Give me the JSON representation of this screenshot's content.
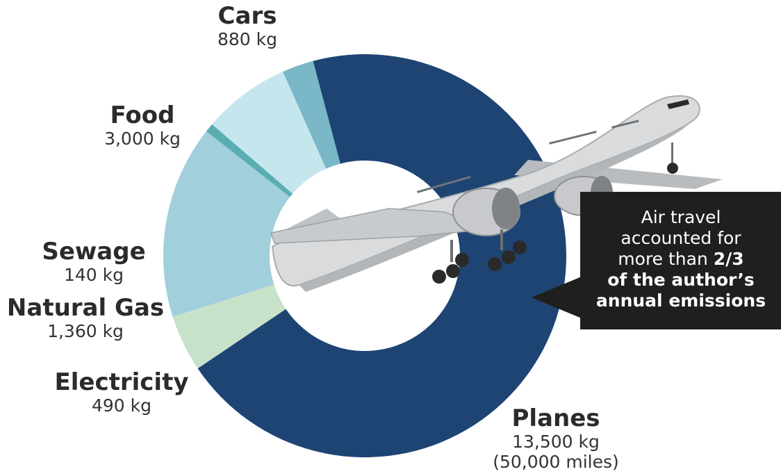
{
  "chart_data": {
    "type": "pie",
    "categories": [
      "Planes",
      "Cars",
      "Food",
      "Sewage",
      "Natural Gas",
      "Electricity"
    ],
    "values": [
      13500,
      880,
      3000,
      140,
      1360,
      490
    ],
    "value_labels": [
      "13,500 kg",
      "880 kg",
      "3,000 kg",
      "140 kg",
      "1,360 kg",
      "490 kg"
    ],
    "planes_note": "(50,000 miles)",
    "colors": [
      "#1e4474",
      "#c8e2c9",
      "#a2cfdc",
      "#5aaeb3",
      "#c6e6ee",
      "#7ab8c8"
    ],
    "donut": true
  },
  "callout": {
    "line1": "Air travel",
    "line2": "accounted for",
    "line3_prefix": "more than ",
    "line3_bold": "2/3",
    "line4": "of the author’s",
    "line5": "annual emissions"
  }
}
